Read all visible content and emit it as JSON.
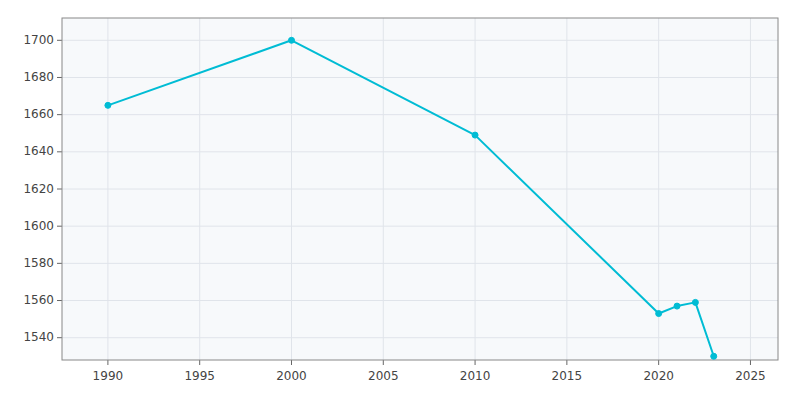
{
  "chart_data": {
    "type": "line",
    "x": [
      1990,
      2000,
      2010,
      2020,
      2021,
      2022,
      2023
    ],
    "values": [
      1665,
      1700,
      1649,
      1553,
      1557,
      1559,
      1530
    ],
    "color": "#00bcd4",
    "marker": "circle",
    "xlim": [
      1987.5,
      2026.5
    ],
    "ylim": [
      1528,
      1712
    ],
    "xticks": [
      1990,
      1995,
      2000,
      2005,
      2010,
      2015,
      2020,
      2025
    ],
    "yticks": [
      1540,
      1560,
      1580,
      1600,
      1620,
      1640,
      1660,
      1680,
      1700
    ],
    "grid": true
  }
}
